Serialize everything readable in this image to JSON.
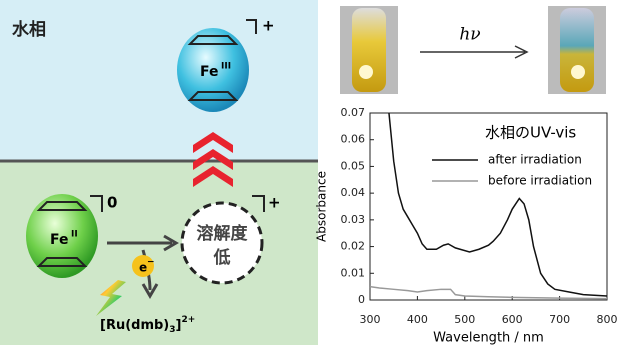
{
  "diagram": {
    "phase": "水相",
    "top_sphere": {
      "metal": "Fe",
      "oxidation": "III",
      "charge": "+"
    },
    "left_sphere": {
      "metal": "Fe",
      "oxidation": "II",
      "charge": "0"
    },
    "dashed_sphere": {
      "line1": "溶解度",
      "line2": "低",
      "charge": "+"
    },
    "electron": {
      "symbol": "e",
      "sign": "−"
    },
    "sensitizer": {
      "open": "[Ru(dmb)",
      "sub": "3",
      "close": "]",
      "sup": "2+"
    },
    "photo_arrow": "hν"
  },
  "chart_data": {
    "type": "line",
    "legend_title": "水相のUV-vis",
    "x_label": "Wavelength / nm",
    "y_label": "Absorbance",
    "xlim": [
      300,
      800
    ],
    "ylim": [
      0,
      0.07
    ],
    "xticks": [
      300,
      400,
      500,
      600,
      700,
      800
    ],
    "yticks": [
      0,
      0.01,
      0.02,
      0.03,
      0.04,
      0.05,
      0.06,
      0.07
    ],
    "series": [
      {
        "name": "after irradiation",
        "color": "#111111",
        "x": [
          340,
          350,
          360,
          370,
          380,
          390,
          400,
          410,
          420,
          440,
          455,
          465,
          480,
          490,
          510,
          530,
          550,
          560,
          575,
          590,
          600,
          615,
          625,
          635,
          645,
          660,
          675,
          690,
          720,
          750,
          800
        ],
        "values": [
          0.07,
          0.052,
          0.04,
          0.034,
          0.031,
          0.028,
          0.025,
          0.021,
          0.019,
          0.019,
          0.0205,
          0.021,
          0.0195,
          0.019,
          0.018,
          0.019,
          0.0205,
          0.022,
          0.025,
          0.03,
          0.034,
          0.038,
          0.036,
          0.03,
          0.02,
          0.01,
          0.006,
          0.004,
          0.003,
          0.002,
          0.0015
        ]
      },
      {
        "name": "before irradiation",
        "color": "#999999",
        "x": [
          300,
          320,
          350,
          380,
          400,
          420,
          450,
          470,
          480,
          500,
          550,
          600,
          700,
          800
        ],
        "values": [
          0.005,
          0.0045,
          0.004,
          0.0035,
          0.003,
          0.0035,
          0.004,
          0.004,
          0.002,
          0.0015,
          0.0012,
          0.001,
          0.0007,
          0.0005
        ]
      }
    ]
  }
}
